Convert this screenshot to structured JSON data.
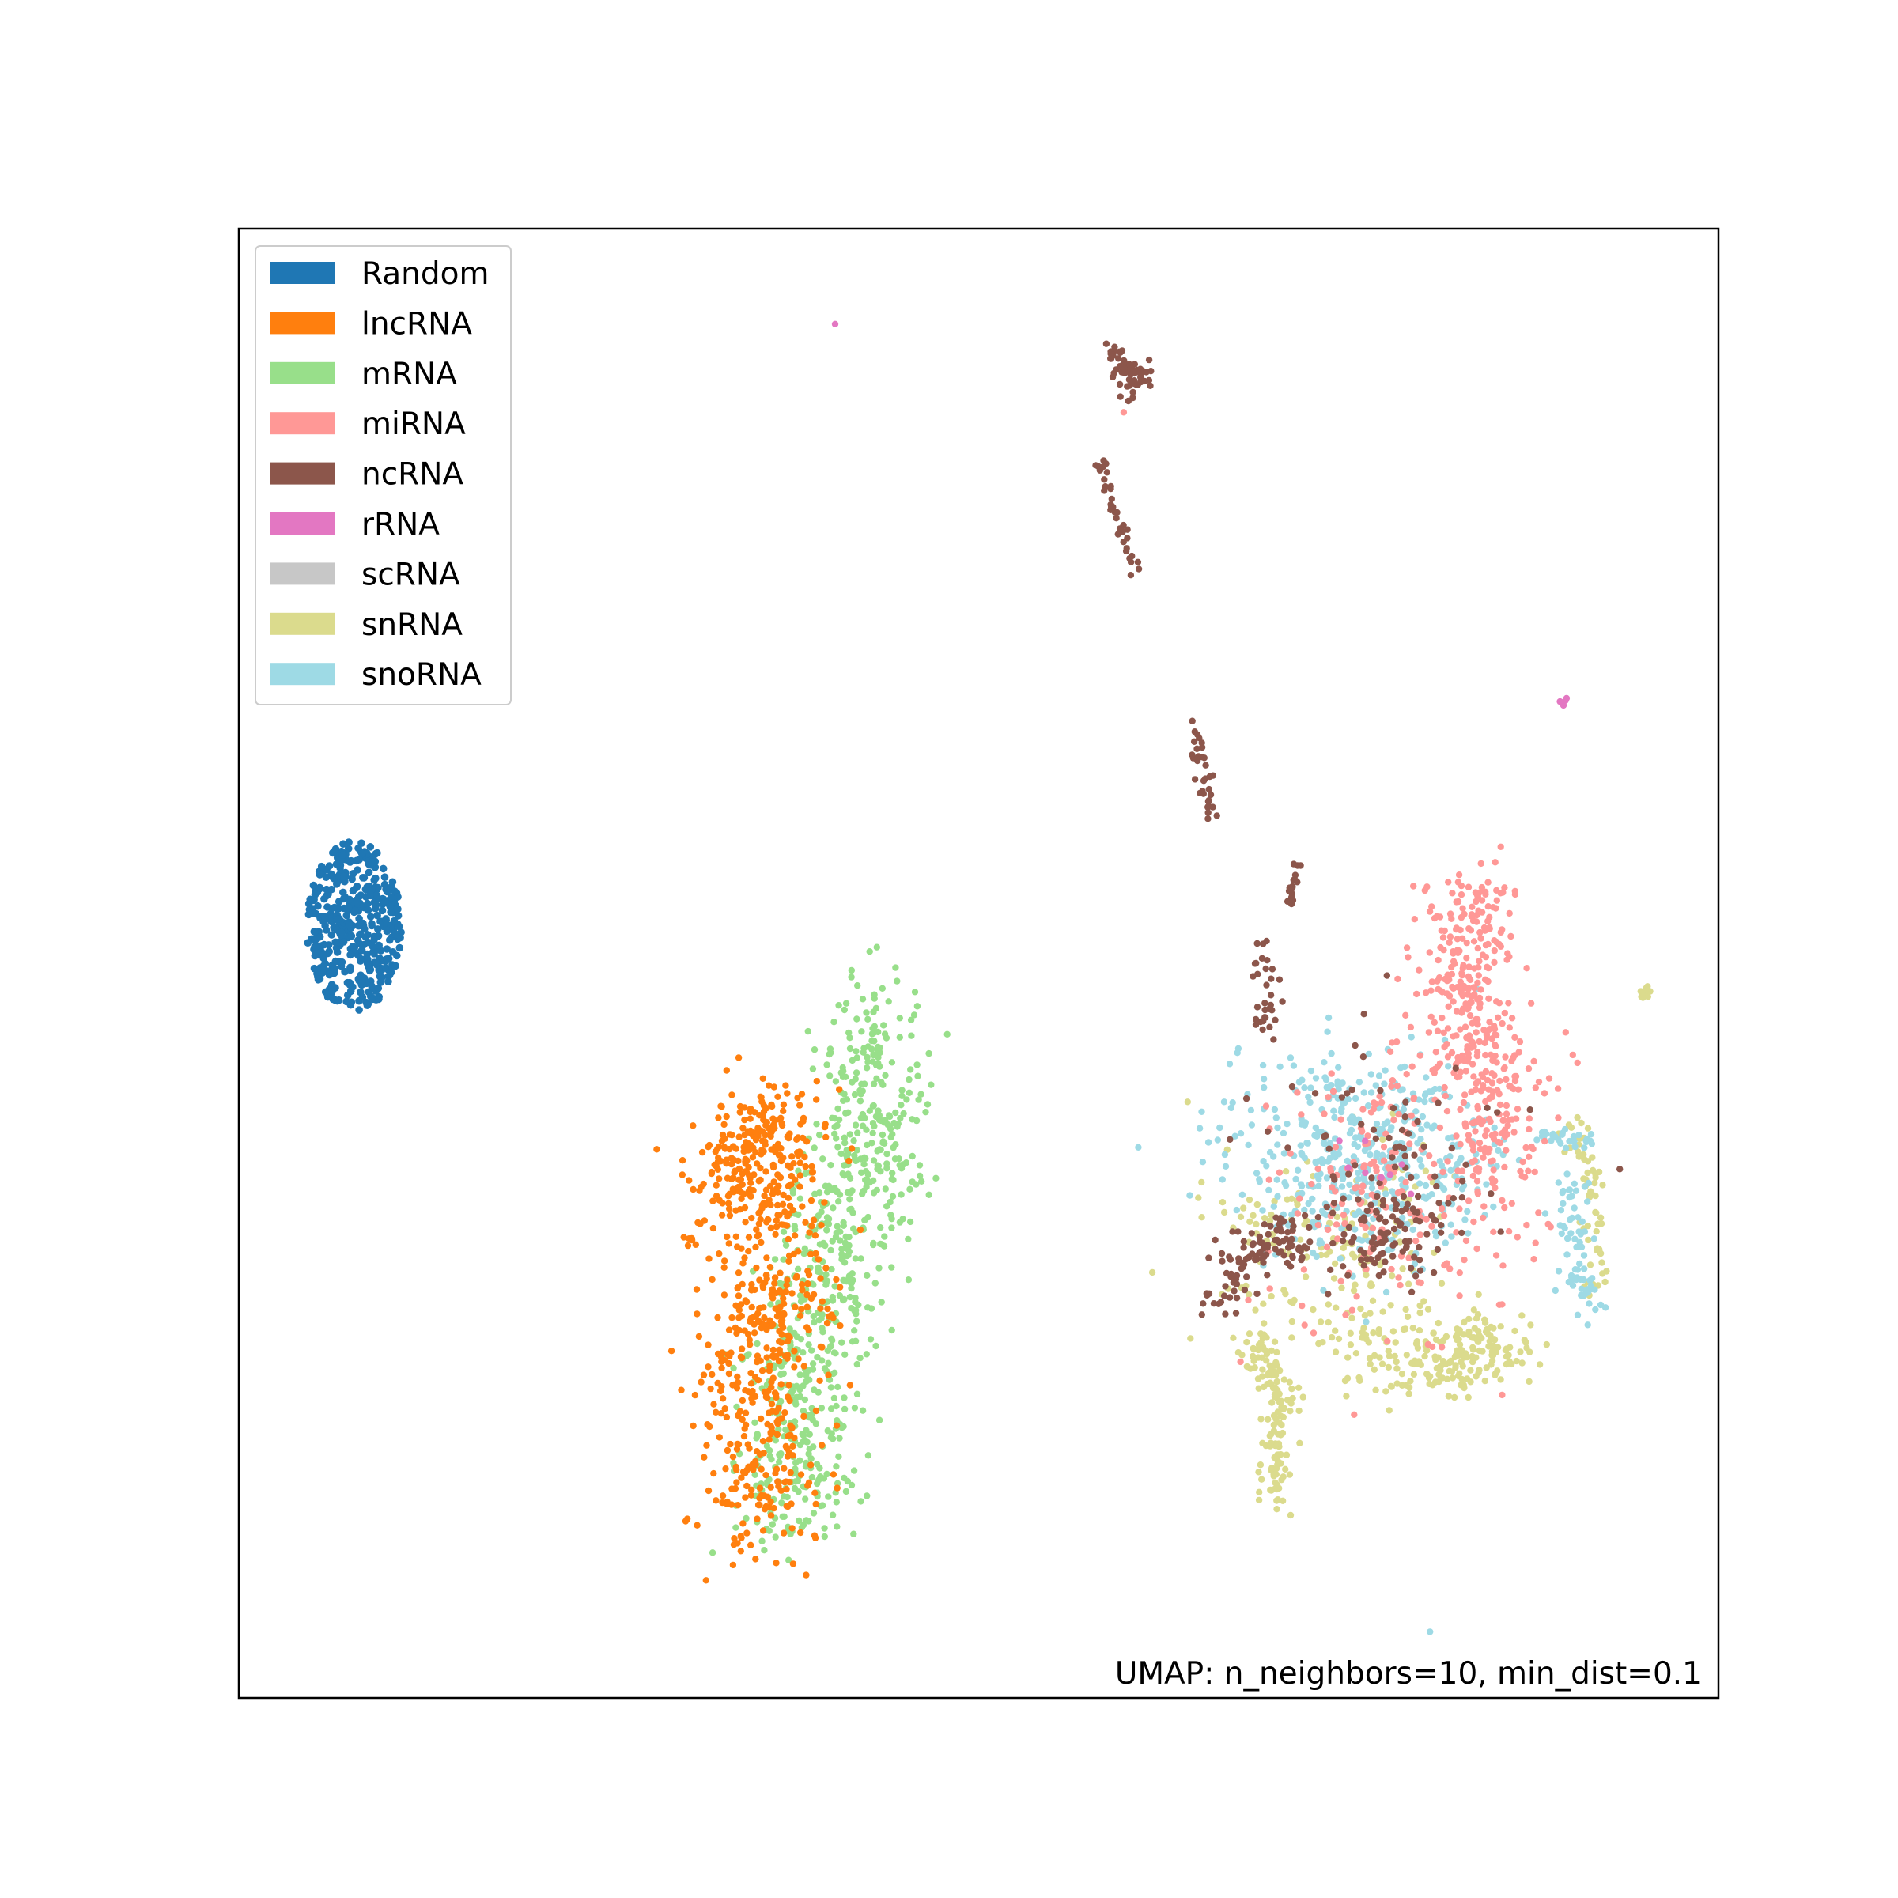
{
  "chart_data": {
    "type": "scatter",
    "title": "",
    "xlabel": "",
    "ylabel": "",
    "xlim": [
      0,
      100
    ],
    "ylim": [
      0,
      100
    ],
    "ticks_shown": false,
    "grid": false,
    "legend_position": "top-left",
    "annotation": "UMAP: n_neighbors=10, min_dist=0.1",
    "annotation_position": "bottom-right",
    "series": [
      {
        "name": "Random",
        "color": "#1f77b4"
      },
      {
        "name": "lncRNA",
        "color": "#ff7f0e"
      },
      {
        "name": "mRNA",
        "color": "#98df8a"
      },
      {
        "name": "miRNA",
        "color": "#ff9896"
      },
      {
        "name": "ncRNA",
        "color": "#8c564b"
      },
      {
        "name": "rRNA",
        "color": "#e377c2"
      },
      {
        "name": "scRNA",
        "color": "#c7c7c7"
      },
      {
        "name": "snRNA",
        "color": "#dbdb8d"
      },
      {
        "name": "snoRNA",
        "color": "#9edae5"
      }
    ],
    "clusters": [
      {
        "series": "Random",
        "shape": "blob",
        "cx": 7.8,
        "cy": 52.5,
        "rx": 3.2,
        "ry": 5.8,
        "count": 420
      },
      {
        "series": "lncRNA",
        "shape": "path",
        "points": [
          [
            33.5,
            33.5
          ],
          [
            34.5,
            37
          ],
          [
            35.8,
            40
          ],
          [
            36.5,
            28.5
          ],
          [
            35,
            24
          ],
          [
            35.5,
            17
          ],
          [
            34.5,
            11.5
          ]
        ],
        "spread": 2.0,
        "count": 700
      },
      {
        "series": "mRNA",
        "shape": "path",
        "points": [
          [
            42.5,
            47
          ],
          [
            43,
            41
          ],
          [
            42,
            36
          ],
          [
            40.5,
            31
          ],
          [
            38.5,
            24
          ],
          [
            37.5,
            17
          ],
          [
            37.5,
            12
          ]
        ],
        "spread": 2.0,
        "count": 720
      },
      {
        "series": "ncRNA",
        "shape": "path",
        "points": [
          [
            59.2,
            92
          ],
          [
            59.5,
            90
          ],
          [
            61.5,
            90.2
          ],
          [
            59.5,
            88.5
          ]
        ],
        "spread": 0.4,
        "count": 60
      },
      {
        "series": "ncRNA",
        "shape": "path",
        "points": [
          [
            58.3,
            84.5
          ],
          [
            59,
            81
          ],
          [
            60,
            78.5
          ],
          [
            60.8,
            76
          ]
        ],
        "spread": 0.3,
        "count": 36
      },
      {
        "series": "ncRNA",
        "shape": "path",
        "points": [
          [
            64.5,
            66
          ],
          [
            65.8,
            60
          ]
        ],
        "spread": 0.3,
        "count": 34
      },
      {
        "series": "ncRNA",
        "shape": "path",
        "points": [
          [
            71.5,
            57
          ],
          [
            71,
            53.5
          ]
        ],
        "spread": 0.25,
        "count": 18
      },
      {
        "series": "ncRNA",
        "shape": "path",
        "points": [
          [
            69,
            51
          ],
          [
            70,
            45
          ]
        ],
        "spread": 0.5,
        "count": 32
      },
      {
        "series": "ncRNA",
        "shape": "path",
        "points": [
          [
            66.5,
            27
          ],
          [
            68,
            30
          ],
          [
            70,
            31.5
          ],
          [
            71.5,
            30.8
          ]
        ],
        "spread": 0.9,
        "count": 110
      },
      {
        "series": "ncRNA",
        "shape": "path",
        "points": [
          [
            75,
            31
          ],
          [
            78,
            31.5
          ],
          [
            80.5,
            30.5
          ]
        ],
        "spread": 1.5,
        "count": 70
      },
      {
        "series": "ncRNA",
        "shape": "scatter",
        "cx": 77,
        "cy": 36,
        "rx": 9,
        "ry": 10,
        "count": 90
      },
      {
        "series": "miRNA",
        "shape": "path",
        "points": [
          [
            83.5,
            55
          ],
          [
            82.5,
            49
          ],
          [
            84.5,
            43
          ],
          [
            85,
            36
          ]
        ],
        "spread": 1.6,
        "count": 380
      },
      {
        "series": "miRNA",
        "shape": "scatter",
        "cx": 79,
        "cy": 35,
        "rx": 10,
        "ry": 11,
        "count": 220
      },
      {
        "series": "snoRNA",
        "shape": "scatter",
        "cx": 76,
        "cy": 37,
        "rx": 10,
        "ry": 8,
        "count": 460
      },
      {
        "series": "snoRNA",
        "shape": "path",
        "points": [
          [
            90,
            35
          ],
          [
            90.5,
            30
          ],
          [
            91,
            26.5
          ]
        ],
        "spread": 0.6,
        "count": 70
      },
      {
        "series": "snoRNA",
        "shape": "path",
        "points": [
          [
            87.5,
            38
          ],
          [
            91.5,
            38
          ]
        ],
        "spread": 0.3,
        "count": 30
      },
      {
        "series": "snRNA",
        "shape": "path",
        "points": [
          [
            75,
            24
          ],
          [
            80,
            22.5
          ],
          [
            83.5,
            23
          ],
          [
            85.5,
            24
          ]
        ],
        "spread": 1.3,
        "count": 220
      },
      {
        "series": "snRNA",
        "shape": "path",
        "points": [
          [
            68.5,
            24.5
          ],
          [
            70.5,
            21
          ],
          [
            70,
            17
          ],
          [
            70,
            13
          ]
        ],
        "spread": 0.6,
        "count": 140
      },
      {
        "series": "snRNA",
        "shape": "path",
        "points": [
          [
            89.5,
            40
          ],
          [
            91.5,
            35
          ],
          [
            92,
            28
          ]
        ],
        "spread": 0.5,
        "count": 60
      },
      {
        "series": "snRNA",
        "shape": "scatter",
        "cx": 74,
        "cy": 31,
        "rx": 9,
        "ry": 8,
        "count": 160
      },
      {
        "series": "snRNA",
        "shape": "path",
        "points": [
          [
            94.5,
            47.5
          ],
          [
            95.5,
            48.5
          ]
        ],
        "spread": 0.2,
        "count": 10
      },
      {
        "series": "rRNA",
        "shape": "point",
        "cx": 40.3,
        "cy": 93.5,
        "count": 1
      },
      {
        "series": "rRNA",
        "shape": "path",
        "points": [
          [
            89.5,
            67.5
          ],
          [
            89.7,
            68.2
          ]
        ],
        "spread": 0.1,
        "count": 4
      },
      {
        "series": "rRNA",
        "shape": "scatter",
        "cx": 77,
        "cy": 36,
        "rx": 6,
        "ry": 6,
        "count": 8
      },
      {
        "series": "miRNA",
        "shape": "point",
        "cx": 59.8,
        "cy": 87.5,
        "count": 1
      },
      {
        "series": "snoRNA",
        "shape": "point",
        "cx": 80.5,
        "cy": 4.5,
        "count": 1
      }
    ]
  }
}
